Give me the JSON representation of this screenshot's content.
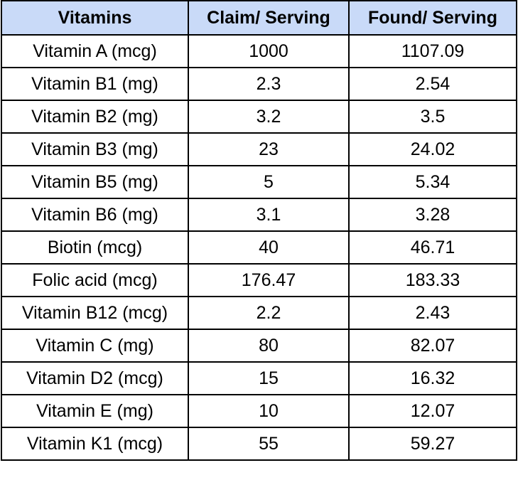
{
  "table": {
    "header_bg": "#c9daf8",
    "headers": [
      "Vitamins",
      "Claim/ Serving",
      "Found/ Serving"
    ],
    "rows": [
      [
        "Vitamin A (mcg)",
        "1000",
        "1107.09"
      ],
      [
        "Vitamin B1 (mg)",
        "2.3",
        "2.54"
      ],
      [
        "Vitamin B2 (mg)",
        "3.2",
        "3.5"
      ],
      [
        "Vitamin B3 (mg)",
        "23",
        "24.02"
      ],
      [
        "Vitamin B5 (mg)",
        "5",
        "5.34"
      ],
      [
        "Vitamin B6 (mg)",
        "3.1",
        "3.28"
      ],
      [
        "Biotin (mcg)",
        "40",
        "46.71"
      ],
      [
        "Folic acid (mcg)",
        "176.47",
        "183.33"
      ],
      [
        "Vitamin B12 (mcg)",
        "2.2",
        "2.43"
      ],
      [
        "Vitamin C (mg)",
        "80",
        "82.07"
      ],
      [
        "Vitamin D2 (mcg)",
        "15",
        "16.32"
      ],
      [
        "Vitamin E (mg)",
        "10",
        "12.07"
      ],
      [
        "Vitamin K1 (mcg)",
        "55",
        "59.27"
      ]
    ]
  }
}
